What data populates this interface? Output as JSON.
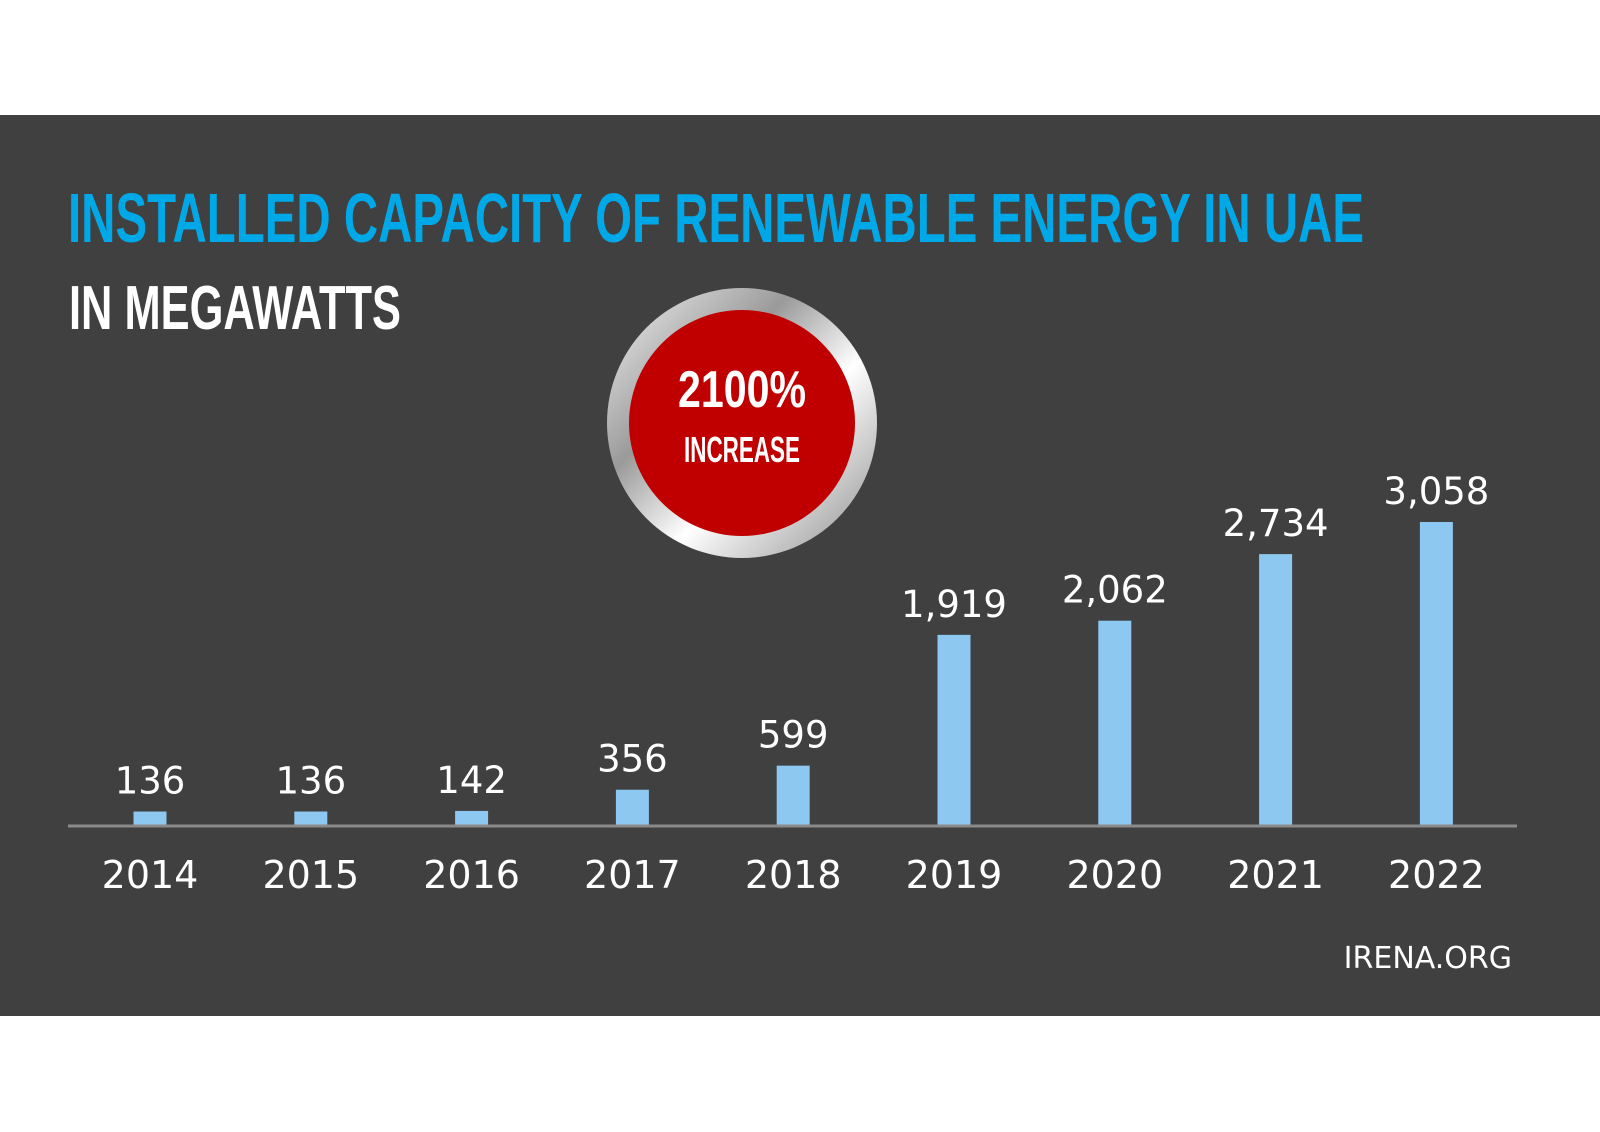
{
  "colors": {
    "background": "#404040",
    "title": "#00a8e8",
    "bars": "#8dc8f0",
    "badge_red": "#c00000",
    "text": "#ffffff",
    "axis": "#8a8a8a"
  },
  "badge": {
    "value": "2100%",
    "label": "INCREASE"
  },
  "source": "IRENA.ORG",
  "chart_data": {
    "type": "bar",
    "title": "INSTALLED CAPACITY OF RENEWABLE ENERGY IN UAE",
    "subtitle": "IN MEGAWATTS",
    "categories": [
      "2014",
      "2015",
      "2016",
      "2017",
      "2018",
      "2019",
      "2020",
      "2021",
      "2022"
    ],
    "values": [
      136,
      136,
      142,
      356,
      599,
      1919,
      2062,
      2734,
      3058
    ],
    "data_labels": [
      "136",
      "136",
      "142",
      "356",
      "599",
      "1,919",
      "2,062",
      "2,734",
      "3,058"
    ],
    "ylim": [
      0,
      3058
    ],
    "grid": false,
    "legend": "none"
  }
}
